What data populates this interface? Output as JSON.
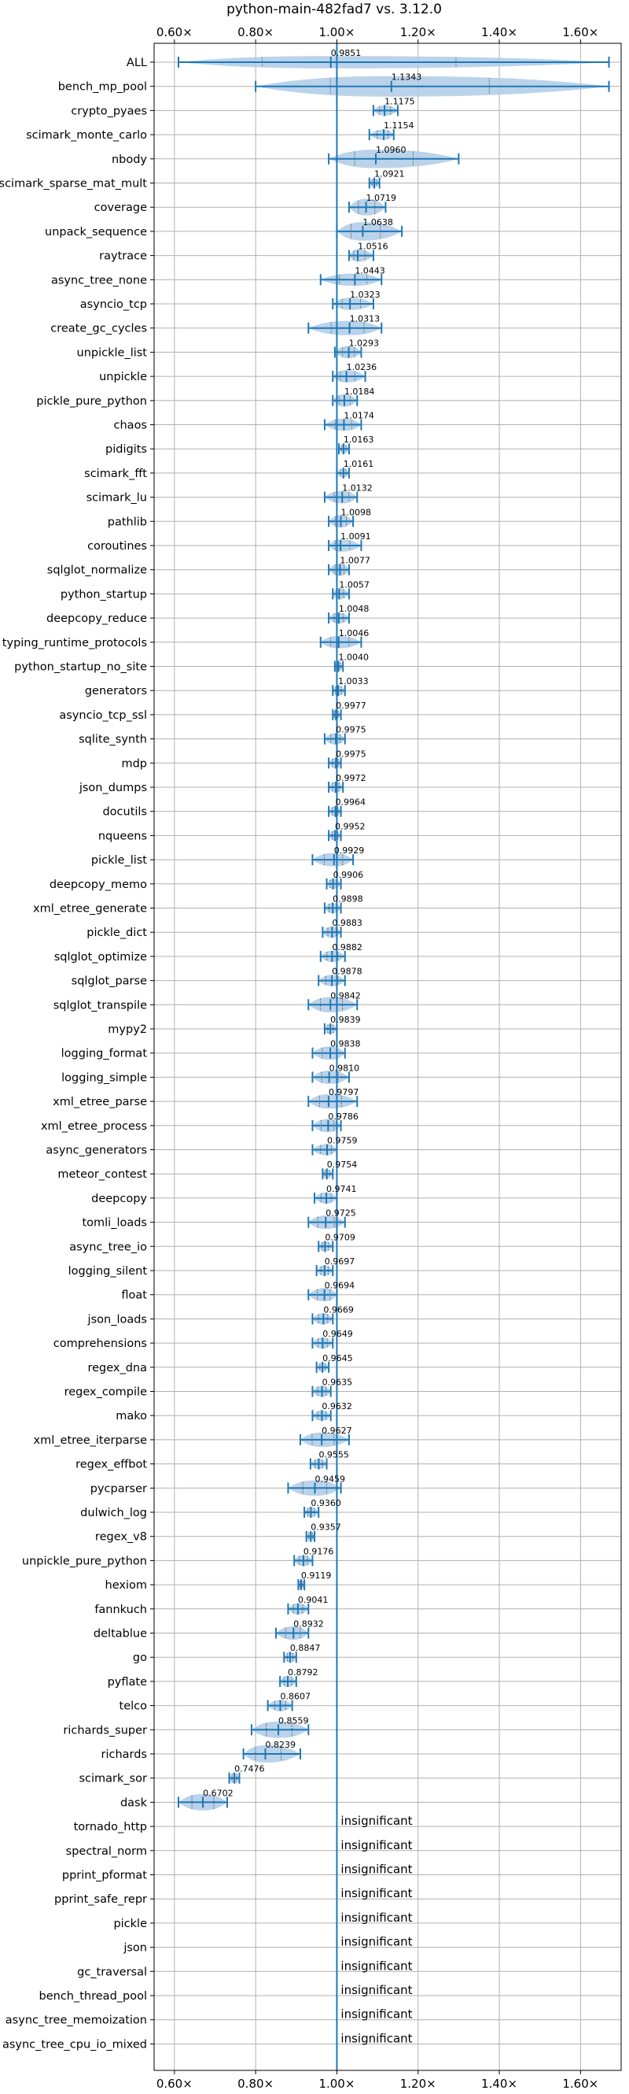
{
  "chart_data": {
    "type": "violin",
    "title": "python-main-482fad7 vs. 3.12.0",
    "xlim": [
      0.55,
      1.7
    ],
    "x_ticks": [
      0.6,
      0.8,
      1.0,
      1.2,
      1.4,
      1.6
    ],
    "x_tick_labels": [
      "0.60×",
      "0.80×",
      "1.00×",
      "1.20×",
      "1.40×",
      "1.60×"
    ],
    "reference_line": 1.0,
    "grid": true,
    "colors": {
      "primary": "#1f77b4",
      "violin_fill": "#aecbe6",
      "grid": "#b0b0b0"
    },
    "insignificant_text": "insignificant",
    "benchmarks": [
      {
        "name": "ALL",
        "value": 0.9851,
        "label": "0.9851",
        "lo": 0.61,
        "hi": 1.67,
        "width": 0.6
      },
      {
        "name": "bench_mp_pool",
        "value": 1.1343,
        "label": "1.1343",
        "lo": 0.8,
        "hi": 1.67,
        "width": 1.0
      },
      {
        "name": "crypto_pyaes",
        "value": 1.1175,
        "label": "1.1175",
        "lo": 1.09,
        "hi": 1.15,
        "width": 0.5
      },
      {
        "name": "scimark_monte_carlo",
        "value": 1.1154,
        "label": "1.1154",
        "lo": 1.08,
        "hi": 1.14,
        "width": 0.5
      },
      {
        "name": "nbody",
        "value": 1.096,
        "label": "1.0960",
        "lo": 0.98,
        "hi": 1.3,
        "width": 0.9
      },
      {
        "name": "scimark_sparse_mat_mult",
        "value": 1.0921,
        "label": "1.0921",
        "lo": 1.08,
        "hi": 1.105,
        "width": 0.45
      },
      {
        "name": "coverage",
        "value": 1.0719,
        "label": "1.0719",
        "lo": 1.03,
        "hi": 1.12,
        "width": 0.8
      },
      {
        "name": "unpack_sequence",
        "value": 1.0638,
        "label": "1.0638",
        "lo": 1.0,
        "hi": 1.16,
        "width": 0.9
      },
      {
        "name": "raytrace",
        "value": 1.0516,
        "label": "1.0516",
        "lo": 1.03,
        "hi": 1.09,
        "width": 0.6
      },
      {
        "name": "async_tree_none",
        "value": 1.0443,
        "label": "1.0443",
        "lo": 0.96,
        "hi": 1.11,
        "width": 0.6
      },
      {
        "name": "asyncio_tcp",
        "value": 1.0323,
        "label": "1.0323",
        "lo": 0.99,
        "hi": 1.09,
        "width": 0.6
      },
      {
        "name": "create_gc_cycles",
        "value": 1.0313,
        "label": "1.0313",
        "lo": 0.93,
        "hi": 1.11,
        "width": 0.7
      },
      {
        "name": "unpickle_list",
        "value": 1.0293,
        "label": "1.0293",
        "lo": 0.995,
        "hi": 1.06,
        "width": 0.6
      },
      {
        "name": "unpickle",
        "value": 1.0236,
        "label": "1.0236",
        "lo": 0.99,
        "hi": 1.07,
        "width": 0.6
      },
      {
        "name": "pickle_pure_python",
        "value": 1.0184,
        "label": "1.0184",
        "lo": 0.99,
        "hi": 1.05,
        "width": 0.6
      },
      {
        "name": "chaos",
        "value": 1.0174,
        "label": "1.0174",
        "lo": 0.97,
        "hi": 1.06,
        "width": 0.6
      },
      {
        "name": "pidigits",
        "value": 1.0163,
        "label": "1.0163",
        "lo": 1.005,
        "hi": 1.03,
        "width": 0.45
      },
      {
        "name": "scimark_fft",
        "value": 1.0161,
        "label": "1.0161",
        "lo": 1.0,
        "hi": 1.03,
        "width": 0.45
      },
      {
        "name": "scimark_lu",
        "value": 1.0132,
        "label": "1.0132",
        "lo": 0.97,
        "hi": 1.05,
        "width": 0.6
      },
      {
        "name": "pathlib",
        "value": 1.0098,
        "label": "1.0098",
        "lo": 0.98,
        "hi": 1.04,
        "width": 0.6
      },
      {
        "name": "coroutines",
        "value": 1.0091,
        "label": "1.0091",
        "lo": 0.98,
        "hi": 1.06,
        "width": 0.6
      },
      {
        "name": "sqlglot_normalize",
        "value": 1.0077,
        "label": "1.0077",
        "lo": 0.98,
        "hi": 1.03,
        "width": 0.6
      },
      {
        "name": "python_startup",
        "value": 1.0057,
        "label": "1.0057",
        "lo": 0.99,
        "hi": 1.03,
        "width": 0.55
      },
      {
        "name": "deepcopy_reduce",
        "value": 1.0048,
        "label": "1.0048",
        "lo": 0.98,
        "hi": 1.03,
        "width": 0.55
      },
      {
        "name": "typing_runtime_protocols",
        "value": 1.0046,
        "label": "1.0046",
        "lo": 0.96,
        "hi": 1.06,
        "width": 0.6
      },
      {
        "name": "python_startup_no_site",
        "value": 1.004,
        "label": "1.0040",
        "lo": 0.995,
        "hi": 1.015,
        "width": 0.45
      },
      {
        "name": "generators",
        "value": 1.0033,
        "label": "1.0033",
        "lo": 0.99,
        "hi": 1.02,
        "width": 0.5
      },
      {
        "name": "asyncio_tcp_ssl",
        "value": 0.9977,
        "label": "0.9977",
        "lo": 0.99,
        "hi": 1.01,
        "width": 0.45
      },
      {
        "name": "sqlite_synth",
        "value": 0.9975,
        "label": "0.9975",
        "lo": 0.97,
        "hi": 1.02,
        "width": 0.55
      },
      {
        "name": "mdp",
        "value": 0.9975,
        "label": "0.9975",
        "lo": 0.98,
        "hi": 1.01,
        "width": 0.5
      },
      {
        "name": "json_dumps",
        "value": 0.9972,
        "label": "0.9972",
        "lo": 0.98,
        "hi": 1.015,
        "width": 0.55
      },
      {
        "name": "docutils",
        "value": 0.9964,
        "label": "0.9964",
        "lo": 0.98,
        "hi": 1.01,
        "width": 0.5
      },
      {
        "name": "nqueens",
        "value": 0.9952,
        "label": "0.9952",
        "lo": 0.98,
        "hi": 1.01,
        "width": 0.5
      },
      {
        "name": "pickle_list",
        "value": 0.9929,
        "label": "0.9929",
        "lo": 0.94,
        "hi": 1.04,
        "width": 0.65
      },
      {
        "name": "deepcopy_memo",
        "value": 0.9906,
        "label": "0.9906",
        "lo": 0.975,
        "hi": 1.01,
        "width": 0.5
      },
      {
        "name": "xml_etree_generate",
        "value": 0.9898,
        "label": "0.9898",
        "lo": 0.97,
        "hi": 1.01,
        "width": 0.5
      },
      {
        "name": "pickle_dict",
        "value": 0.9883,
        "label": "0.9883",
        "lo": 0.965,
        "hi": 1.01,
        "width": 0.55
      },
      {
        "name": "sqlglot_optimize",
        "value": 0.9882,
        "label": "0.9882",
        "lo": 0.96,
        "hi": 1.02,
        "width": 0.55
      },
      {
        "name": "sqlglot_parse",
        "value": 0.9878,
        "label": "0.9878",
        "lo": 0.955,
        "hi": 1.02,
        "width": 0.55
      },
      {
        "name": "sqlglot_transpile",
        "value": 0.9842,
        "label": "0.9842",
        "lo": 0.93,
        "hi": 1.05,
        "width": 0.75
      },
      {
        "name": "mypy2",
        "value": 0.9839,
        "label": "0.9839",
        "lo": 0.97,
        "hi": 1.0,
        "width": 0.5
      },
      {
        "name": "logging_format",
        "value": 0.9838,
        "label": "0.9838",
        "lo": 0.94,
        "hi": 1.02,
        "width": 0.65
      },
      {
        "name": "logging_simple",
        "value": 0.981,
        "label": "0.9810",
        "lo": 0.94,
        "hi": 1.03,
        "width": 0.65
      },
      {
        "name": "xml_etree_parse",
        "value": 0.9797,
        "label": "0.9797",
        "lo": 0.93,
        "hi": 1.05,
        "width": 0.7
      },
      {
        "name": "xml_etree_process",
        "value": 0.9786,
        "label": "0.9786",
        "lo": 0.94,
        "hi": 1.01,
        "width": 0.65
      },
      {
        "name": "async_generators",
        "value": 0.9759,
        "label": "0.9759",
        "lo": 0.94,
        "hi": 1.0,
        "width": 0.55
      },
      {
        "name": "meteor_contest",
        "value": 0.9754,
        "label": "0.9754",
        "lo": 0.965,
        "hi": 0.99,
        "width": 0.45
      },
      {
        "name": "deepcopy",
        "value": 0.9741,
        "label": "0.9741",
        "lo": 0.945,
        "hi": 1.0,
        "width": 0.55
      },
      {
        "name": "tomli_loads",
        "value": 0.9725,
        "label": "0.9725",
        "lo": 0.93,
        "hi": 1.02,
        "width": 0.65
      },
      {
        "name": "async_tree_io",
        "value": 0.9709,
        "label": "0.9709",
        "lo": 0.955,
        "hi": 0.99,
        "width": 0.5
      },
      {
        "name": "logging_silent",
        "value": 0.9697,
        "label": "0.9697",
        "lo": 0.95,
        "hi": 0.99,
        "width": 0.5
      },
      {
        "name": "float",
        "value": 0.9694,
        "label": "0.9694",
        "lo": 0.93,
        "hi": 1.0,
        "width": 0.65
      },
      {
        "name": "json_loads",
        "value": 0.9669,
        "label": "0.9669",
        "lo": 0.94,
        "hi": 0.99,
        "width": 0.55
      },
      {
        "name": "comprehensions",
        "value": 0.9649,
        "label": "0.9649",
        "lo": 0.94,
        "hi": 0.99,
        "width": 0.55
      },
      {
        "name": "regex_dna",
        "value": 0.9645,
        "label": "0.9645",
        "lo": 0.95,
        "hi": 0.98,
        "width": 0.45
      },
      {
        "name": "regex_compile",
        "value": 0.9635,
        "label": "0.9635",
        "lo": 0.94,
        "hi": 0.985,
        "width": 0.55
      },
      {
        "name": "mako",
        "value": 0.9632,
        "label": "0.9632",
        "lo": 0.94,
        "hi": 0.985,
        "width": 0.5
      },
      {
        "name": "xml_etree_iterparse",
        "value": 0.9627,
        "label": "0.9627",
        "lo": 0.91,
        "hi": 1.03,
        "width": 0.7
      },
      {
        "name": "regex_effbot",
        "value": 0.9555,
        "label": "0.9555",
        "lo": 0.935,
        "hi": 0.975,
        "width": 0.5
      },
      {
        "name": "pycparser",
        "value": 0.9459,
        "label": "0.9459",
        "lo": 0.88,
        "hi": 1.01,
        "width": 0.75
      },
      {
        "name": "dulwich_log",
        "value": 0.936,
        "label": "0.9360",
        "lo": 0.92,
        "hi": 0.955,
        "width": 0.5
      },
      {
        "name": "regex_v8",
        "value": 0.9357,
        "label": "0.9357",
        "lo": 0.925,
        "hi": 0.945,
        "width": 0.45
      },
      {
        "name": "unpickle_pure_python",
        "value": 0.9176,
        "label": "0.9176",
        "lo": 0.895,
        "hi": 0.94,
        "width": 0.55
      },
      {
        "name": "hexiom",
        "value": 0.9119,
        "label": "0.9119",
        "lo": 0.905,
        "hi": 0.92,
        "width": 0.45
      },
      {
        "name": "fannkuch",
        "value": 0.9041,
        "label": "0.9041",
        "lo": 0.88,
        "hi": 0.93,
        "width": 0.55
      },
      {
        "name": "deltablue",
        "value": 0.8932,
        "label": "0.8932",
        "lo": 0.85,
        "hi": 0.93,
        "width": 0.65
      },
      {
        "name": "go",
        "value": 0.8847,
        "label": "0.8847",
        "lo": 0.87,
        "hi": 0.9,
        "width": 0.5
      },
      {
        "name": "pyflate",
        "value": 0.8792,
        "label": "0.8792",
        "lo": 0.86,
        "hi": 0.9,
        "width": 0.55
      },
      {
        "name": "telco",
        "value": 0.8607,
        "label": "0.8607",
        "lo": 0.83,
        "hi": 0.89,
        "width": 0.55
      },
      {
        "name": "richards_super",
        "value": 0.8559,
        "label": "0.8559",
        "lo": 0.79,
        "hi": 0.93,
        "width": 0.8
      },
      {
        "name": "richards",
        "value": 0.8239,
        "label": "0.8239",
        "lo": 0.77,
        "hi": 0.91,
        "width": 0.85
      },
      {
        "name": "scimark_sor",
        "value": 0.7476,
        "label": "0.7476",
        "lo": 0.735,
        "hi": 0.76,
        "width": 0.5
      },
      {
        "name": "dask",
        "value": 0.6702,
        "label": "0.6702",
        "lo": 0.61,
        "hi": 0.73,
        "width": 0.8
      },
      {
        "name": "tornado_http",
        "insignificant": true
      },
      {
        "name": "spectral_norm",
        "insignificant": true
      },
      {
        "name": "pprint_pformat",
        "insignificant": true
      },
      {
        "name": "pprint_safe_repr",
        "insignificant": true
      },
      {
        "name": "pickle",
        "insignificant": true
      },
      {
        "name": "json",
        "insignificant": true
      },
      {
        "name": "gc_traversal",
        "insignificant": true
      },
      {
        "name": "bench_thread_pool",
        "insignificant": true
      },
      {
        "name": "async_tree_memoization",
        "insignificant": true
      },
      {
        "name": "async_tree_cpu_io_mixed",
        "insignificant": true
      }
    ]
  }
}
